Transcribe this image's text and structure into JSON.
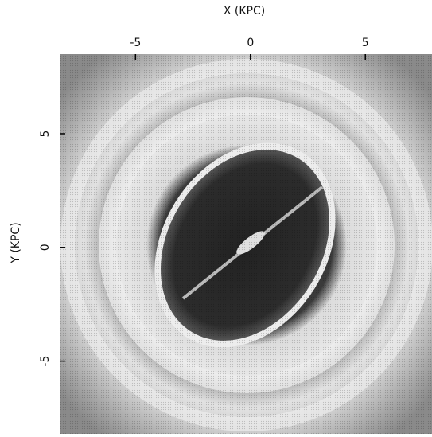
{
  "chart_data": {
    "type": "image",
    "xlabel": "X (KPC)",
    "ylabel": "Y (KPC)",
    "xlim": [
      -8.3,
      7.9
    ],
    "ylim": [
      -8.2,
      8.5
    ],
    "xticks": [
      -5,
      0,
      5
    ],
    "yticks": [
      -5,
      0,
      5
    ]
  }
}
